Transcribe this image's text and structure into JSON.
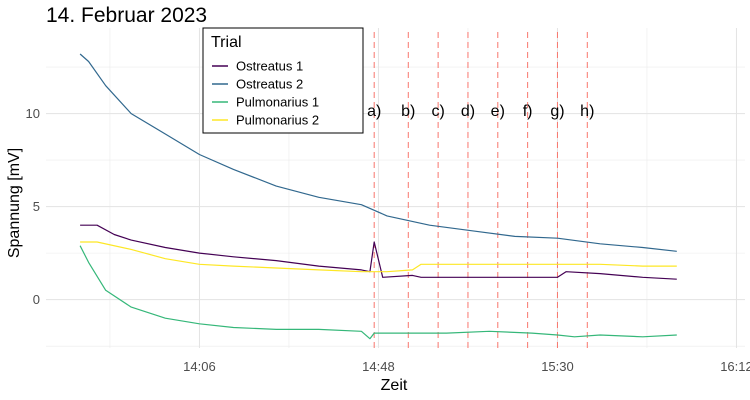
{
  "chart_data": {
    "type": "line",
    "title": "14. Februar 2023",
    "xlabel": "Zeit",
    "ylabel": "Spannung [mV]",
    "x_unit": "time of day (hh:mm)",
    "xlim": [
      "13:30",
      "16:14"
    ],
    "ylim": [
      -2.6,
      14.6
    ],
    "x_ticks": [
      "14:06",
      "14:48",
      "15:30",
      "16:12"
    ],
    "y_ticks": [
      0,
      5,
      10
    ],
    "grid": true,
    "legend": {
      "title": "Trial",
      "placement": "top-left"
    },
    "series": [
      {
        "name": "Ostreatus 1",
        "color": "#440154",
        "x": [
          "13:38",
          "13:42",
          "13:46",
          "13:50",
          "13:58",
          "14:06",
          "14:14",
          "14:24",
          "14:34",
          "14:44",
          "14:46",
          "14:47",
          "14:49",
          "14:56",
          "14:58",
          "15:04",
          "15:14",
          "15:24",
          "15:30",
          "15:32",
          "15:40",
          "15:50",
          "15:58"
        ],
        "y": [
          4.0,
          4.0,
          3.5,
          3.2,
          2.8,
          2.5,
          2.3,
          2.1,
          1.8,
          1.6,
          1.5,
          3.1,
          1.2,
          1.3,
          1.2,
          1.2,
          1.2,
          1.2,
          1.2,
          1.5,
          1.4,
          1.2,
          1.1
        ]
      },
      {
        "name": "Ostreatus 2",
        "color": "#31688e",
        "x": [
          "13:38",
          "13:40",
          "13:44",
          "13:50",
          "13:58",
          "14:06",
          "14:14",
          "14:24",
          "14:34",
          "14:44",
          "14:50",
          "15:00",
          "15:10",
          "15:20",
          "15:30",
          "15:40",
          "15:50",
          "15:58"
        ],
        "y": [
          13.2,
          12.8,
          11.5,
          10.0,
          8.9,
          7.8,
          7.0,
          6.1,
          5.5,
          5.1,
          4.5,
          4.0,
          3.7,
          3.4,
          3.3,
          3.0,
          2.8,
          2.6
        ]
      },
      {
        "name": "Pulmonarius 1",
        "color": "#35b779",
        "x": [
          "13:38",
          "13:40",
          "13:44",
          "13:50",
          "13:58",
          "14:06",
          "14:14",
          "14:24",
          "14:34",
          "14:44",
          "14:46",
          "14:47",
          "14:56",
          "15:04",
          "15:14",
          "15:24",
          "15:30",
          "15:34",
          "15:40",
          "15:50",
          "15:58"
        ],
        "y": [
          2.9,
          2.0,
          0.5,
          -0.4,
          -1.0,
          -1.3,
          -1.5,
          -1.6,
          -1.6,
          -1.7,
          -2.1,
          -1.8,
          -1.8,
          -1.8,
          -1.7,
          -1.8,
          -1.9,
          -2.0,
          -1.9,
          -2.0,
          -1.9
        ]
      },
      {
        "name": "Pulmonarius 2",
        "color": "#fde725",
        "x": [
          "13:38",
          "13:42",
          "13:50",
          "13:58",
          "14:06",
          "14:14",
          "14:24",
          "14:34",
          "14:44",
          "14:50",
          "14:56",
          "14:58",
          "15:04",
          "15:14",
          "15:24",
          "15:30",
          "15:40",
          "15:50",
          "15:58"
        ],
        "y": [
          3.1,
          3.1,
          2.7,
          2.2,
          1.9,
          1.8,
          1.7,
          1.6,
          1.5,
          1.5,
          1.6,
          1.9,
          1.9,
          1.9,
          1.9,
          1.9,
          1.9,
          1.8,
          1.8
        ]
      }
    ],
    "vlines": {
      "color": "#f8766d",
      "x": [
        "14:47",
        "14:55",
        "15:02",
        "15:09",
        "15:16",
        "15:23",
        "15:30",
        "15:37"
      ],
      "labels": [
        "a)",
        "b)",
        "c)",
        "d)",
        "e)",
        "f)",
        "g)",
        "h)"
      ]
    }
  }
}
